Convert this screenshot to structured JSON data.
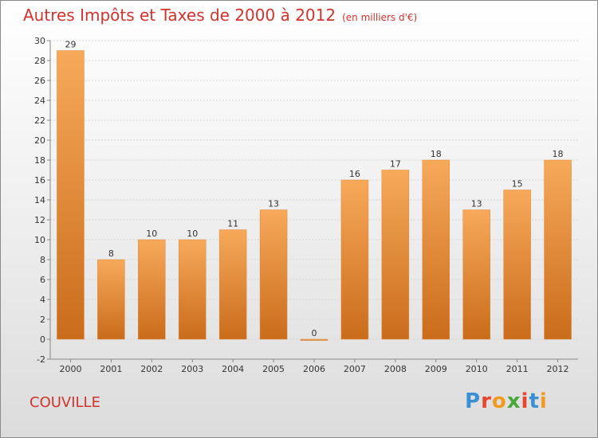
{
  "header": {
    "title": "Autres Impôts et Taxes de 2000 à 2012",
    "subtitle": "(en milliers d'€)"
  },
  "footer": {
    "commune": "COUVILLE",
    "logo_text": "Proxiti",
    "logo_colors": [
      "#3c8fd4",
      "#e8462c",
      "#f29a1f",
      "#4aa83a",
      "#e8462c",
      "#3c8fd4",
      "#f29a1f"
    ]
  },
  "colors": {
    "bar_top": "#f7a95a",
    "bar_bottom": "#c96c1b",
    "title": "#d2332d"
  },
  "chart_data": {
    "type": "bar",
    "categories": [
      "2000",
      "2001",
      "2002",
      "2003",
      "2004",
      "2005",
      "2006",
      "2007",
      "2008",
      "2009",
      "2010",
      "2011",
      "2012"
    ],
    "values": [
      29,
      8,
      10,
      10,
      11,
      13,
      0,
      16,
      17,
      18,
      13,
      15,
      18
    ],
    "data_labels": [
      "29",
      "8",
      "10",
      "10",
      "11",
      "13",
      "0",
      "16",
      "17",
      "18",
      "13",
      "15",
      "18"
    ],
    "ylim": [
      -2,
      30
    ],
    "yticks": [
      -2,
      0,
      2,
      4,
      6,
      8,
      10,
      12,
      14,
      16,
      18,
      20,
      22,
      24,
      26,
      28,
      30
    ],
    "grid": true,
    "legend": "none"
  }
}
